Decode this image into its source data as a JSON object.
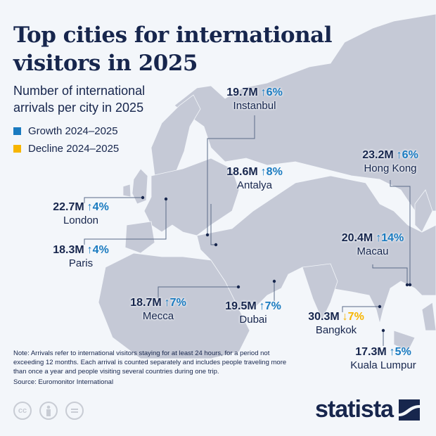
{
  "header": {
    "title_line1": "Top cities for international",
    "title_line2": "visitors in 2025",
    "subtitle_line1": "Number of international",
    "subtitle_line2": "arrivals per city in 2025"
  },
  "legend": [
    {
      "label": "Growth 2024–2025",
      "color": "#1a7bc0"
    },
    {
      "label": "Decline 2024–2025",
      "color": "#f7b500"
    }
  ],
  "colors": {
    "text": "#17264d",
    "growth": "#1a7bc0",
    "decline": "#f7b500",
    "land": "#c5c9d6",
    "background": "#f3f6fa"
  },
  "chart_data": {
    "type": "map",
    "unit": "international arrivals (millions)",
    "cities": [
      {
        "name": "Instanbul",
        "value": "19.7M",
        "change": "6%",
        "direction": "up"
      },
      {
        "name": "Antalya",
        "value": "18.6M",
        "change": "8%",
        "direction": "up"
      },
      {
        "name": "Hong Kong",
        "value": "23.2M",
        "change": "6%",
        "direction": "up"
      },
      {
        "name": "London",
        "value": "22.7M",
        "change": "4%",
        "direction": "up"
      },
      {
        "name": "Paris",
        "value": "18.3M",
        "change": "4%",
        "direction": "up"
      },
      {
        "name": "Macau",
        "value": "20.4M",
        "change": "14%",
        "direction": "up"
      },
      {
        "name": "Mecca",
        "value": "18.7M",
        "change": "7%",
        "direction": "up"
      },
      {
        "name": "Dubai",
        "value": "19.5M",
        "change": "7%",
        "direction": "up"
      },
      {
        "name": "Bangkok",
        "value": "30.3M",
        "change": "7%",
        "direction": "down"
      },
      {
        "name": "Kuala Lumpur",
        "value": "17.3M",
        "change": "5%",
        "direction": "up"
      }
    ]
  },
  "arrows": {
    "up": "↑",
    "down": "↓"
  },
  "footer": {
    "note": "Note: Arrivals refer to international visitors staying for at least 24 hours, for a period not exceeding 12 months. Each arrival is counted separately and includes people traveling more than once a year and people visiting several countries during one trip.",
    "source": "Source: Euromonitor International",
    "license_icons": [
      "cc-icon",
      "attribution-icon",
      "no-derivatives-icon"
    ],
    "brand": "statista"
  }
}
